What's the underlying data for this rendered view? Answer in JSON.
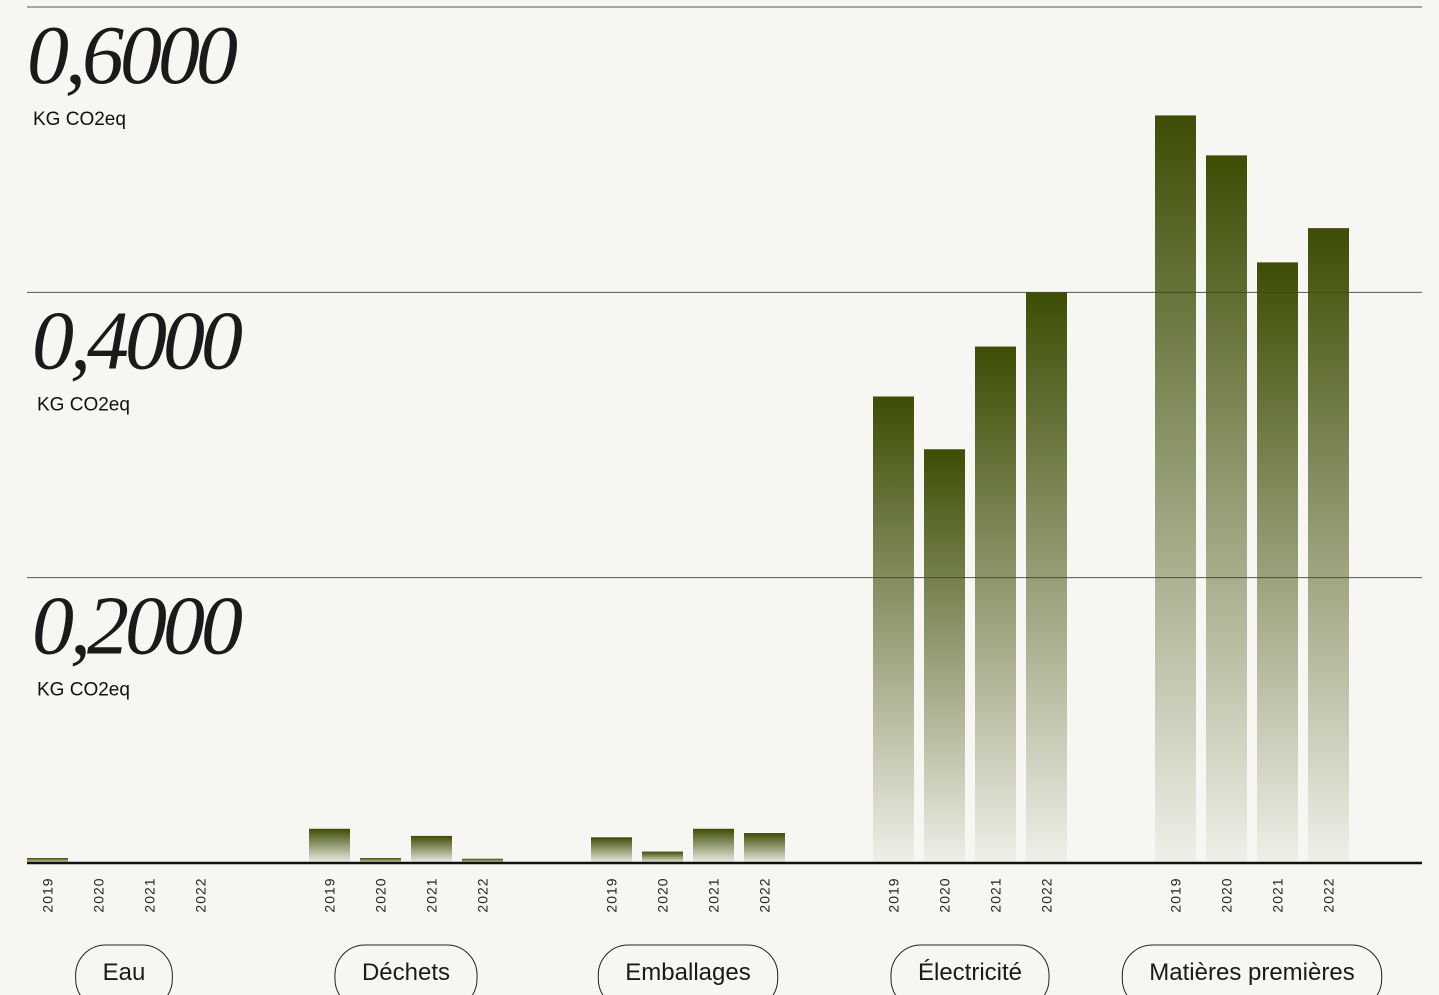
{
  "chart_data": {
    "type": "bar",
    "categories": [
      "Eau",
      "Déchets",
      "Emballages",
      "Électricité",
      "Matières premières"
    ],
    "series": [
      {
        "name": "2019",
        "values": [
          0.0035,
          0.024,
          0.018,
          0.327,
          0.524
        ]
      },
      {
        "name": "2020",
        "values": [
          0,
          0.0035,
          0.008,
          0.29,
          0.496
        ]
      },
      {
        "name": "2021",
        "values": [
          0,
          0.019,
          0.024,
          0.362,
          0.421
        ]
      },
      {
        "name": "2022",
        "values": [
          0,
          0.003,
          0.021,
          0.4,
          0.445
        ]
      }
    ],
    "color": "#3d4d04",
    "unit": "KG CO2eq",
    "ylim": [
      0,
      0.6
    ],
    "yticks": [
      {
        "value": 0.2,
        "label": "0,2000"
      },
      {
        "value": 0.4,
        "label": "0,4000"
      },
      {
        "value": 0.6,
        "label": "0,6000"
      }
    ],
    "grid": true
  }
}
